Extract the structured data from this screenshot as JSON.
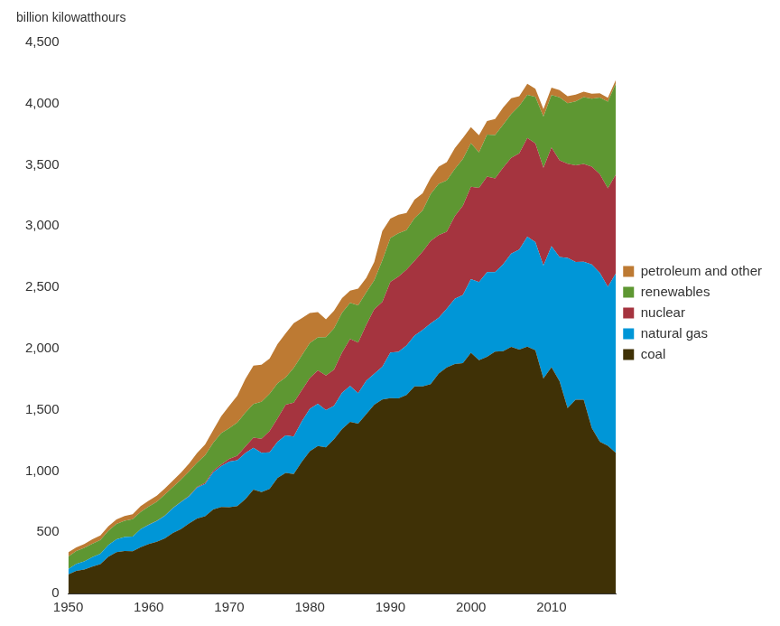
{
  "chart_data": {
    "type": "area",
    "title": "billion kilowatthours",
    "stacked": true,
    "grid": false,
    "legend": "right",
    "x": [
      1950,
      1951,
      1952,
      1953,
      1954,
      1955,
      1956,
      1957,
      1958,
      1959,
      1960,
      1961,
      1962,
      1963,
      1964,
      1965,
      1966,
      1967,
      1968,
      1969,
      1970,
      1971,
      1972,
      1973,
      1974,
      1975,
      1976,
      1977,
      1978,
      1979,
      1980,
      1981,
      1982,
      1983,
      1984,
      1985,
      1986,
      1987,
      1988,
      1989,
      1990,
      1991,
      1992,
      1993,
      1994,
      1995,
      1996,
      1997,
      1998,
      1999,
      2000,
      2001,
      2002,
      2003,
      2004,
      2005,
      2006,
      2007,
      2008,
      2009,
      2010,
      2011,
      2012,
      2013,
      2014,
      2015,
      2016,
      2017,
      2018
    ],
    "xlim": [
      1950,
      2018
    ],
    "xticks": [
      1950,
      1960,
      1970,
      1980,
      1990,
      2000,
      2010
    ],
    "ylim": [
      0,
      4500
    ],
    "yticks": [
      0,
      500,
      {
        "value": 1000,
        "label": "1,000"
      },
      {
        "value": 1500,
        "label": "1,500"
      },
      {
        "value": 2000,
        "label": "2,000"
      },
      {
        "value": 2500,
        "label": "2,500"
      },
      {
        "value": 3000,
        "label": "3,000"
      },
      {
        "value": 3500,
        "label": "3,500"
      },
      {
        "value": 4000,
        "label": "4,000"
      },
      {
        "value": 4500,
        "label": "4,500"
      }
    ],
    "series": [
      {
        "name": "coal",
        "color": "#3f3106",
        "values": [
          155,
          185,
          195,
          219,
          239,
          301,
          338,
          346,
          344,
          378,
          403,
          422,
          450,
          494,
          526,
          571,
          613,
          630,
          685,
          706,
          704,
          713,
          771,
          848,
          828,
          853,
          944,
          985,
          976,
          1075,
          1162,
          1203,
          1192,
          1259,
          1342,
          1402,
          1386,
          1464,
          1541,
          1584,
          1594,
          1592,
          1621,
          1690,
          1691,
          1709,
          1796,
          1845,
          1874,
          1881,
          1966,
          1904,
          1933,
          1974,
          1978,
          2013,
          1991,
          2016,
          1986,
          1756,
          1847,
          1733,
          1514,
          1581,
          1582,
          1352,
          1239,
          1206,
          1146
        ]
      },
      {
        "name": "natural gas",
        "color": "#0096d7",
        "values": [
          45,
          57,
          67,
          77,
          86,
          95,
          104,
          114,
          120,
          147,
          158,
          170,
          184,
          202,
          220,
          222,
          251,
          265,
          304,
          333,
          373,
          374,
          376,
          341,
          320,
          300,
          295,
          306,
          305,
          329,
          346,
          346,
          305,
          274,
          297,
          292,
          249,
          273,
          253,
          267,
          373,
          381,
          404,
          415,
          461,
          496,
          455,
          479,
          532,
          556,
          601,
          639,
          691,
          650,
          710,
          761,
          816,
          897,
          883,
          921,
          988,
          1014,
          1226,
          1125,
          1127,
          1335,
          1379,
          1297,
          1469
        ]
      },
      {
        "name": "nuclear",
        "color": "#a5343f",
        "values": [
          0,
          0,
          0,
          0,
          0,
          0,
          0,
          0,
          0.2,
          0.2,
          0.5,
          2,
          2,
          3,
          3,
          4,
          6,
          8,
          13,
          14,
          22,
          38,
          54,
          83,
          114,
          173,
          191,
          251,
          276,
          255,
          251,
          273,
          283,
          294,
          328,
          384,
          414,
          455,
          527,
          529,
          577,
          613,
          619,
          610,
          640,
          673,
          675,
          629,
          674,
          728,
          754,
          769,
          780,
          764,
          789,
          782,
          787,
          806,
          806,
          799,
          807,
          790,
          769,
          789,
          797,
          797,
          806,
          805,
          807
        ]
      },
      {
        "name": "renewables",
        "color": "#5e9732",
        "values": [
          101,
          104,
          110,
          109,
          112,
          117,
          126,
          133,
          143,
          141,
          149,
          155,
          172,
          170,
          180,
          198,
          198,
          225,
          227,
          256,
          250,
          270,
          276,
          275,
          304,
          303,
          287,
          223,
          284,
          284,
          285,
          269,
          313,
          337,
          325,
          295,
          303,
          265,
          237,
          339,
          357,
          355,
          322,
          350,
          335,
          384,
          419,
          419,
          386,
          383,
          356,
          288,
          343,
          355,
          351,
          358,
          386,
          352,
          380,
          418,
          427,
          513,
          494,
          523,
          546,
          556,
          624,
          708,
          742
        ]
      },
      {
        "name": "petroleum and other",
        "color": "#bd7a33",
        "values": [
          34,
          30,
          32,
          37,
          37,
          37,
          36,
          40,
          40,
          47,
          48,
          49,
          49,
          52,
          57,
          65,
          79,
          89,
          104,
          138,
          184,
          220,
          274,
          314,
          301,
          289,
          320,
          358,
          365,
          304,
          246,
          206,
          146,
          144,
          120,
          100,
          137,
          118,
          149,
          240,
          160,
          150,
          140,
          150,
          140,
          130,
          140,
          150,
          170,
          170,
          130,
          140,
          110,
          130,
          140,
          130,
          80,
          90,
          65,
          60,
          60,
          60,
          57,
          55,
          45,
          40,
          35,
          30,
          30
        ]
      }
    ]
  }
}
